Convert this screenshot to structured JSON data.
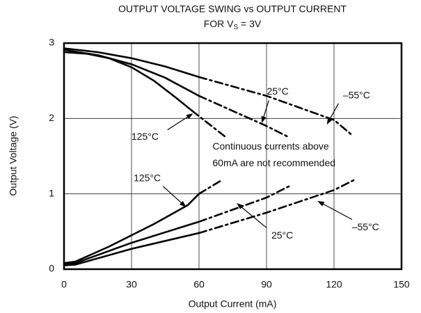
{
  "chart_data": {
    "type": "line",
    "title": "OUTPUT VOLTAGE SWING vs OUTPUT CURRENT",
    "subtitle_parts": [
      "FOR V",
      "S",
      " = 3V"
    ],
    "x_label": "Output Current (mA)",
    "y_label": "Output Voltage (V)",
    "xlim": [
      0,
      150
    ],
    "xticks": [
      0,
      30,
      60,
      90,
      120,
      150
    ],
    "ylim": [
      0,
      3
    ],
    "yticks": [
      0,
      1,
      2,
      3
    ],
    "grid": true,
    "series": [
      {
        "name": "-55°C high",
        "color": "#000000",
        "dash_start_x": 60,
        "x": [
          0,
          15,
          30,
          45,
          60,
          90,
          120,
          128
        ],
        "values": [
          2.93,
          2.88,
          2.8,
          2.69,
          2.55,
          2.3,
          1.98,
          1.78
        ]
      },
      {
        "name": "25°C high",
        "color": "#000000",
        "dash_start_x": 60,
        "x": [
          0,
          15,
          30,
          45,
          60,
          90,
          100
        ],
        "values": [
          2.91,
          2.84,
          2.72,
          2.54,
          2.3,
          1.9,
          1.75
        ]
      },
      {
        "name": "125°C high",
        "color": "#000000",
        "dash_start_x": 57,
        "x": [
          0,
          10,
          20,
          30,
          40,
          50,
          57,
          72
        ],
        "values": [
          2.88,
          2.86,
          2.8,
          2.68,
          2.5,
          2.27,
          2.1,
          1.75
        ]
      },
      {
        "name": "125°C low",
        "color": "#000000",
        "dash_start_x": 60,
        "x": [
          0,
          5,
          20,
          40,
          55,
          60,
          70
        ],
        "values": [
          0.08,
          0.1,
          0.3,
          0.6,
          0.85,
          1.0,
          1.18
        ]
      },
      {
        "name": "25°C low",
        "color": "#000000",
        "dash_start_x": 60,
        "x": [
          0,
          5,
          30,
          60,
          90,
          100
        ],
        "values": [
          0.07,
          0.08,
          0.35,
          0.63,
          0.95,
          1.1
        ]
      },
      {
        "name": "-55°C low",
        "color": "#000000",
        "dash_start_x": 60,
        "x": [
          0,
          5,
          30,
          60,
          90,
          120,
          130
        ],
        "values": [
          0.05,
          0.06,
          0.27,
          0.48,
          0.75,
          1.05,
          1.2
        ]
      }
    ],
    "annotations": [
      "25°C",
      "–55°C",
      "125°C",
      "Continuous currents above",
      "60mA are not recommended",
      "125°C",
      "25°C",
      "–55°C"
    ]
  }
}
